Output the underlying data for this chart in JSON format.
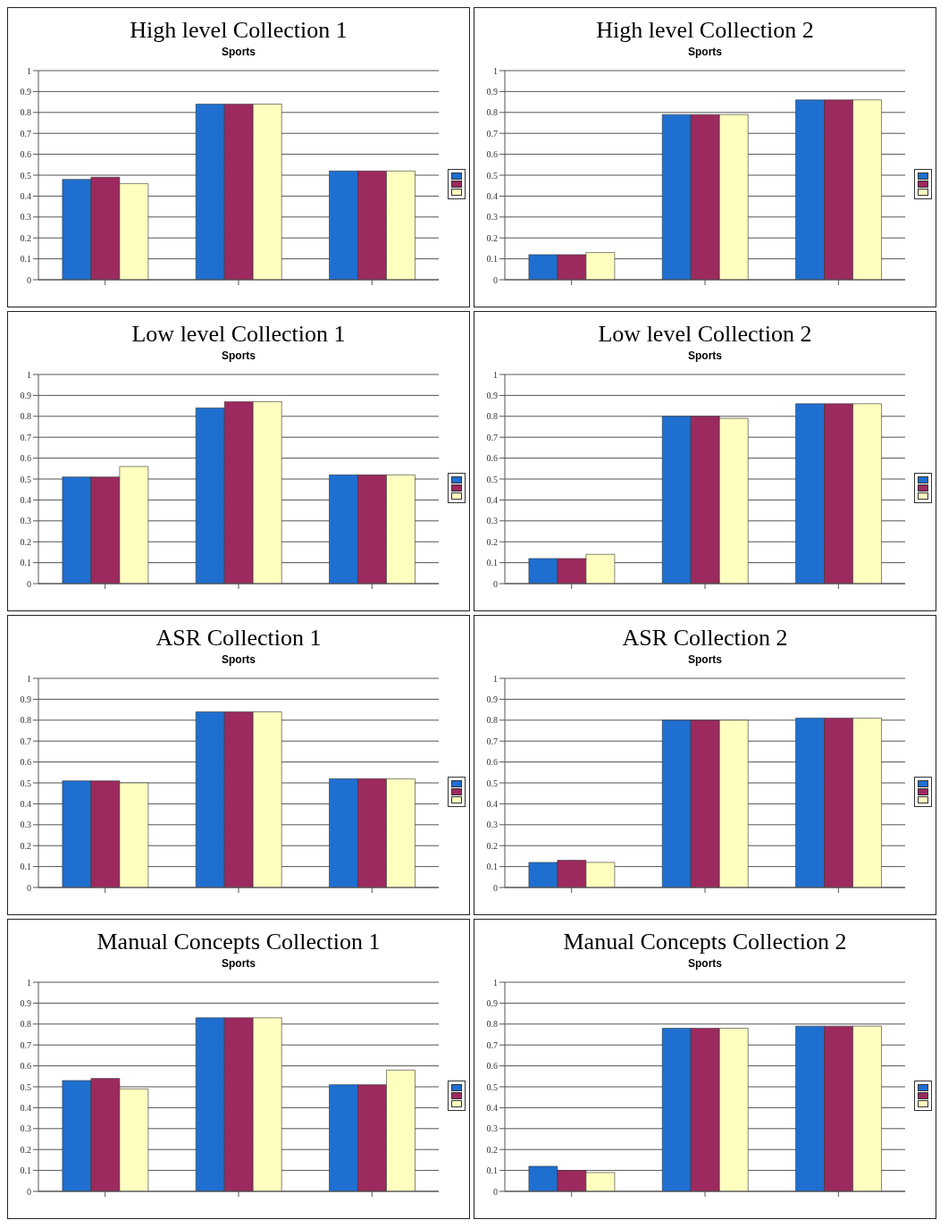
{
  "chart_data": [
    {
      "type": "bar",
      "title": "High level Collection 1",
      "subtitle": "Sports",
      "categories": [
        null,
        null,
        null
      ],
      "series": [
        {
          "color": "#1f6fd0",
          "values": [
            0.48,
            0.84,
            0.52
          ]
        },
        {
          "color": "#9c2a5e",
          "values": [
            0.49,
            0.84,
            0.52
          ]
        },
        {
          "color": "#ffffc0",
          "values": [
            0.46,
            0.84,
            0.52
          ]
        }
      ],
      "ylim": [
        0,
        1
      ],
      "yticks": [
        0,
        0.1,
        0.2,
        0.3,
        0.4,
        0.5,
        0.6,
        0.7,
        0.8,
        0.9,
        1
      ],
      "grid": "y"
    },
    {
      "type": "bar",
      "title": "High level Collection 2",
      "subtitle": "Sports",
      "categories": [
        null,
        null,
        null
      ],
      "series": [
        {
          "color": "#1f6fd0",
          "values": [
            0.12,
            0.79,
            0.86
          ]
        },
        {
          "color": "#9c2a5e",
          "values": [
            0.12,
            0.79,
            0.86
          ]
        },
        {
          "color": "#ffffc0",
          "values": [
            0.13,
            0.79,
            0.86
          ]
        }
      ],
      "ylim": [
        0,
        1
      ],
      "yticks": [
        0,
        0.1,
        0.2,
        0.3,
        0.4,
        0.5,
        0.6,
        0.7,
        0.8,
        0.9,
        1
      ],
      "grid": "y"
    },
    {
      "type": "bar",
      "title": "Low level Collection 1",
      "subtitle": "Sports",
      "categories": [
        null,
        null,
        null
      ],
      "series": [
        {
          "color": "#1f6fd0",
          "values": [
            0.51,
            0.84,
            0.52
          ]
        },
        {
          "color": "#9c2a5e",
          "values": [
            0.51,
            0.87,
            0.52
          ]
        },
        {
          "color": "#ffffc0",
          "values": [
            0.56,
            0.87,
            0.52
          ]
        }
      ],
      "ylim": [
        0,
        1
      ],
      "yticks": [
        0,
        0.1,
        0.2,
        0.3,
        0.4,
        0.5,
        0.6,
        0.7,
        0.8,
        0.9,
        1
      ],
      "grid": "y"
    },
    {
      "type": "bar",
      "title": "Low level Collection 2",
      "subtitle": "Sports",
      "categories": [
        null,
        null,
        null
      ],
      "series": [
        {
          "color": "#1f6fd0",
          "values": [
            0.12,
            0.8,
            0.86
          ]
        },
        {
          "color": "#9c2a5e",
          "values": [
            0.12,
            0.8,
            0.86
          ]
        },
        {
          "color": "#ffffc0",
          "values": [
            0.14,
            0.79,
            0.86
          ]
        }
      ],
      "ylim": [
        0,
        1
      ],
      "yticks": [
        0,
        0.1,
        0.2,
        0.3,
        0.4,
        0.5,
        0.6,
        0.7,
        0.8,
        0.9,
        1
      ],
      "grid": "y"
    },
    {
      "type": "bar",
      "title": "ASR Collection 1",
      "subtitle": "Sports",
      "categories": [
        null,
        null,
        null
      ],
      "series": [
        {
          "color": "#1f6fd0",
          "values": [
            0.51,
            0.84,
            0.52
          ]
        },
        {
          "color": "#9c2a5e",
          "values": [
            0.51,
            0.84,
            0.52
          ]
        },
        {
          "color": "#ffffc0",
          "values": [
            0.5,
            0.84,
            0.52
          ]
        }
      ],
      "ylim": [
        0,
        1
      ],
      "yticks": [
        0,
        0.1,
        0.2,
        0.3,
        0.4,
        0.5,
        0.6,
        0.7,
        0.8,
        0.9,
        1
      ],
      "grid": "y"
    },
    {
      "type": "bar",
      "title": "ASR Collection 2",
      "subtitle": "Sports",
      "categories": [
        null,
        null,
        null
      ],
      "series": [
        {
          "color": "#1f6fd0",
          "values": [
            0.12,
            0.8,
            0.81
          ]
        },
        {
          "color": "#9c2a5e",
          "values": [
            0.13,
            0.8,
            0.81
          ]
        },
        {
          "color": "#ffffc0",
          "values": [
            0.12,
            0.8,
            0.81
          ]
        }
      ],
      "ylim": [
        0,
        1
      ],
      "yticks": [
        0,
        0.1,
        0.2,
        0.3,
        0.4,
        0.5,
        0.6,
        0.7,
        0.8,
        0.9,
        1
      ],
      "grid": "y"
    },
    {
      "type": "bar",
      "title": "Manual Concepts Collection 1",
      "subtitle": "Sports",
      "categories": [
        null,
        null,
        null
      ],
      "series": [
        {
          "color": "#1f6fd0",
          "values": [
            0.53,
            0.83,
            0.51
          ]
        },
        {
          "color": "#9c2a5e",
          "values": [
            0.54,
            0.83,
            0.51
          ]
        },
        {
          "color": "#ffffc0",
          "values": [
            0.49,
            0.83,
            0.58
          ]
        }
      ],
      "ylim": [
        0,
        1
      ],
      "yticks": [
        0,
        0.1,
        0.2,
        0.3,
        0.4,
        0.5,
        0.6,
        0.7,
        0.8,
        0.9,
        1
      ],
      "grid": "y"
    },
    {
      "type": "bar",
      "title": "Manual Concepts Collection 2",
      "subtitle": "Sports",
      "categories": [
        null,
        null,
        null
      ],
      "series": [
        {
          "color": "#1f6fd0",
          "values": [
            0.12,
            0.78,
            0.79
          ]
        },
        {
          "color": "#9c2a5e",
          "values": [
            0.1,
            0.78,
            0.79
          ]
        },
        {
          "color": "#ffffc0",
          "values": [
            0.09,
            0.78,
            0.79
          ]
        }
      ],
      "ylim": [
        0,
        1
      ],
      "yticks": [
        0,
        0.1,
        0.2,
        0.3,
        0.4,
        0.5,
        0.6,
        0.7,
        0.8,
        0.9,
        1
      ],
      "grid": "y"
    }
  ]
}
